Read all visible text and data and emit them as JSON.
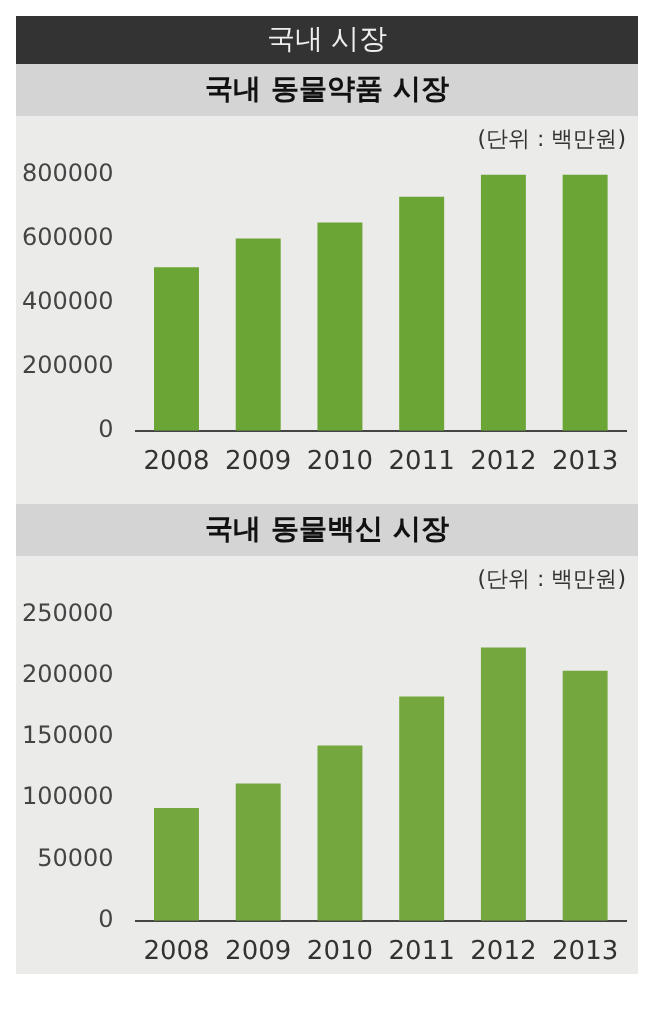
{
  "chart_data": [
    {
      "type": "bar",
      "title": "국내 시장",
      "subtitle": "국내 동물약품 시장",
      "annotations": [
        "(단위 : 백만원)"
      ],
      "categories": [
        "2008",
        "2009",
        "2010",
        "2011",
        "2012",
        "2013"
      ],
      "values": [
        510000,
        600000,
        650000,
        730000,
        800000,
        800000
      ],
      "color": "#6aa536",
      "ylim": [
        0,
        800000
      ],
      "yticks": [
        0,
        200000,
        400000,
        600000,
        800000
      ],
      "grid": false
    },
    {
      "type": "bar",
      "title": "국내 동물백신 시장",
      "annotations": [
        "(단위 : 백만원)"
      ],
      "categories": [
        "2008",
        "2009",
        "2010",
        "2011",
        "2012",
        "2013"
      ],
      "values": [
        92000,
        112000,
        143000,
        183000,
        223000,
        204000
      ],
      "color": "#74a83e",
      "ylim": [
        0,
        250000
      ],
      "yticks": [
        0,
        50000,
        100000,
        150000,
        200000,
        250000
      ],
      "grid": false
    }
  ]
}
